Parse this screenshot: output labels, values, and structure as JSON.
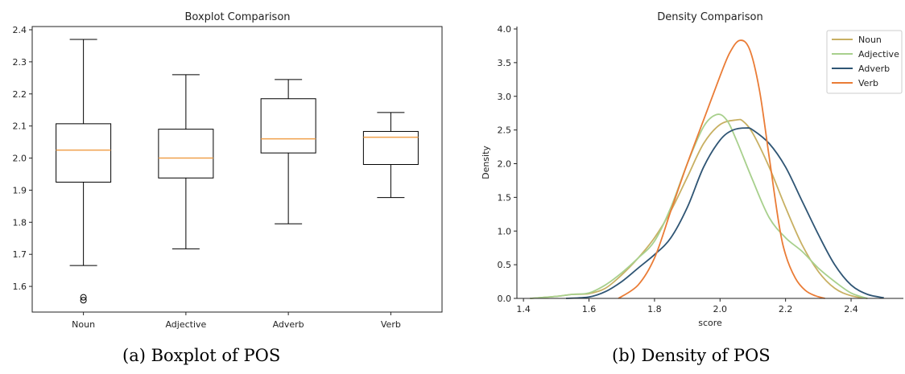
{
  "chart_data": [
    {
      "type": "box",
      "title": "Boxplot Comparison",
      "xlabel": "",
      "ylabel": "",
      "ylim": [
        1.52,
        2.41
      ],
      "yticks": [
        1.6,
        1.7,
        1.8,
        1.9,
        2.0,
        2.1,
        2.2,
        2.3,
        2.4
      ],
      "ytick_labels": [
        "1.6",
        "1.7",
        "1.8",
        "1.9",
        "2.0",
        "2.1",
        "2.2",
        "2.3",
        "2.4"
      ],
      "categories": [
        "Noun",
        "Adjective",
        "Adverb",
        "Verb"
      ],
      "boxes": [
        {
          "min": 1.665,
          "q1": 1.925,
          "median": 2.025,
          "q3": 2.107,
          "max": 2.37,
          "outliers": [
            1.566,
            1.557
          ]
        },
        {
          "min": 1.717,
          "q1": 1.938,
          "median": 2.0,
          "q3": 2.09,
          "max": 2.26,
          "outliers": []
        },
        {
          "min": 1.795,
          "q1": 2.016,
          "median": 2.06,
          "q3": 2.185,
          "max": 2.245,
          "outliers": []
        },
        {
          "min": 1.877,
          "q1": 1.98,
          "median": 2.065,
          "q3": 2.083,
          "max": 2.142,
          "outliers": []
        }
      ],
      "colors": {
        "box": "#000000",
        "median": "#f0a04b"
      }
    },
    {
      "type": "line",
      "title": "Density Comparison",
      "xlabel": "score",
      "ylabel": "Density",
      "xlim": [
        1.38,
        2.54
      ],
      "ylim": [
        0,
        4.0
      ],
      "xticks": [
        1.4,
        1.6,
        1.8,
        2.0,
        2.2,
        2.4
      ],
      "xtick_labels": [
        "1.4",
        "1.6",
        "1.8",
        "2.0",
        "2.2",
        "2.4"
      ],
      "yticks": [
        0,
        0.5,
        1.0,
        1.5,
        2.0,
        2.5,
        3.0,
        3.5,
        4.0
      ],
      "ytick_labels": [
        "0.0",
        "0.5",
        "1.0",
        "1.5",
        "2.0",
        "2.5",
        "3.0",
        "3.5",
        "4.0"
      ],
      "legend_position": "top-right",
      "series": [
        {
          "name": "Noun",
          "color": "#c8b063",
          "x": [
            1.42,
            1.5,
            1.55,
            1.6,
            1.65,
            1.7,
            1.75,
            1.8,
            1.85,
            1.9,
            1.95,
            2.0,
            2.05,
            2.07,
            2.1,
            2.15,
            2.2,
            2.25,
            2.3,
            2.35,
            2.4,
            2.45
          ],
          "y": [
            0,
            0.03,
            0.06,
            0.07,
            0.15,
            0.35,
            0.6,
            0.9,
            1.3,
            1.8,
            2.3,
            2.58,
            2.65,
            2.63,
            2.45,
            1.95,
            1.35,
            0.8,
            0.4,
            0.15,
            0.04,
            0
          ]
        },
        {
          "name": "Adjective",
          "color": "#a8d08d",
          "x": [
            1.42,
            1.5,
            1.55,
            1.6,
            1.65,
            1.7,
            1.75,
            1.8,
            1.85,
            1.9,
            1.95,
            1.99,
            2.02,
            2.05,
            2.1,
            2.15,
            2.2,
            2.25,
            2.3,
            2.35,
            2.4,
            2.45
          ],
          "y": [
            0,
            0.03,
            0.06,
            0.08,
            0.2,
            0.38,
            0.6,
            0.85,
            1.35,
            2.0,
            2.55,
            2.73,
            2.65,
            2.35,
            1.75,
            1.2,
            0.9,
            0.7,
            0.45,
            0.25,
            0.08,
            0
          ]
        },
        {
          "name": "Adverb",
          "color": "#2f5574",
          "x": [
            1.53,
            1.6,
            1.65,
            1.7,
            1.75,
            1.8,
            1.85,
            1.9,
            1.95,
            2.0,
            2.04,
            2.08,
            2.1,
            2.15,
            2.2,
            2.25,
            2.3,
            2.35,
            2.4,
            2.45,
            2.5
          ],
          "y": [
            0,
            0.02,
            0.1,
            0.25,
            0.45,
            0.65,
            0.9,
            1.35,
            1.95,
            2.35,
            2.5,
            2.53,
            2.5,
            2.3,
            1.95,
            1.45,
            0.95,
            0.5,
            0.2,
            0.06,
            0.01
          ]
        },
        {
          "name": "Verb",
          "color": "#ea7c36",
          "x": [
            1.69,
            1.75,
            1.8,
            1.85,
            1.9,
            1.95,
            2.0,
            2.03,
            2.06,
            2.09,
            2.12,
            2.15,
            2.18,
            2.2,
            2.23,
            2.26,
            2.29,
            2.32
          ],
          "y": [
            0,
            0.2,
            0.6,
            1.3,
            2.0,
            2.65,
            3.3,
            3.65,
            3.83,
            3.7,
            3.1,
            2.1,
            1.1,
            0.65,
            0.3,
            0.12,
            0.04,
            0
          ]
        }
      ]
    }
  ],
  "captions": {
    "left": "(a)  Boxplot of POS",
    "right": "(b)  Density of POS"
  }
}
